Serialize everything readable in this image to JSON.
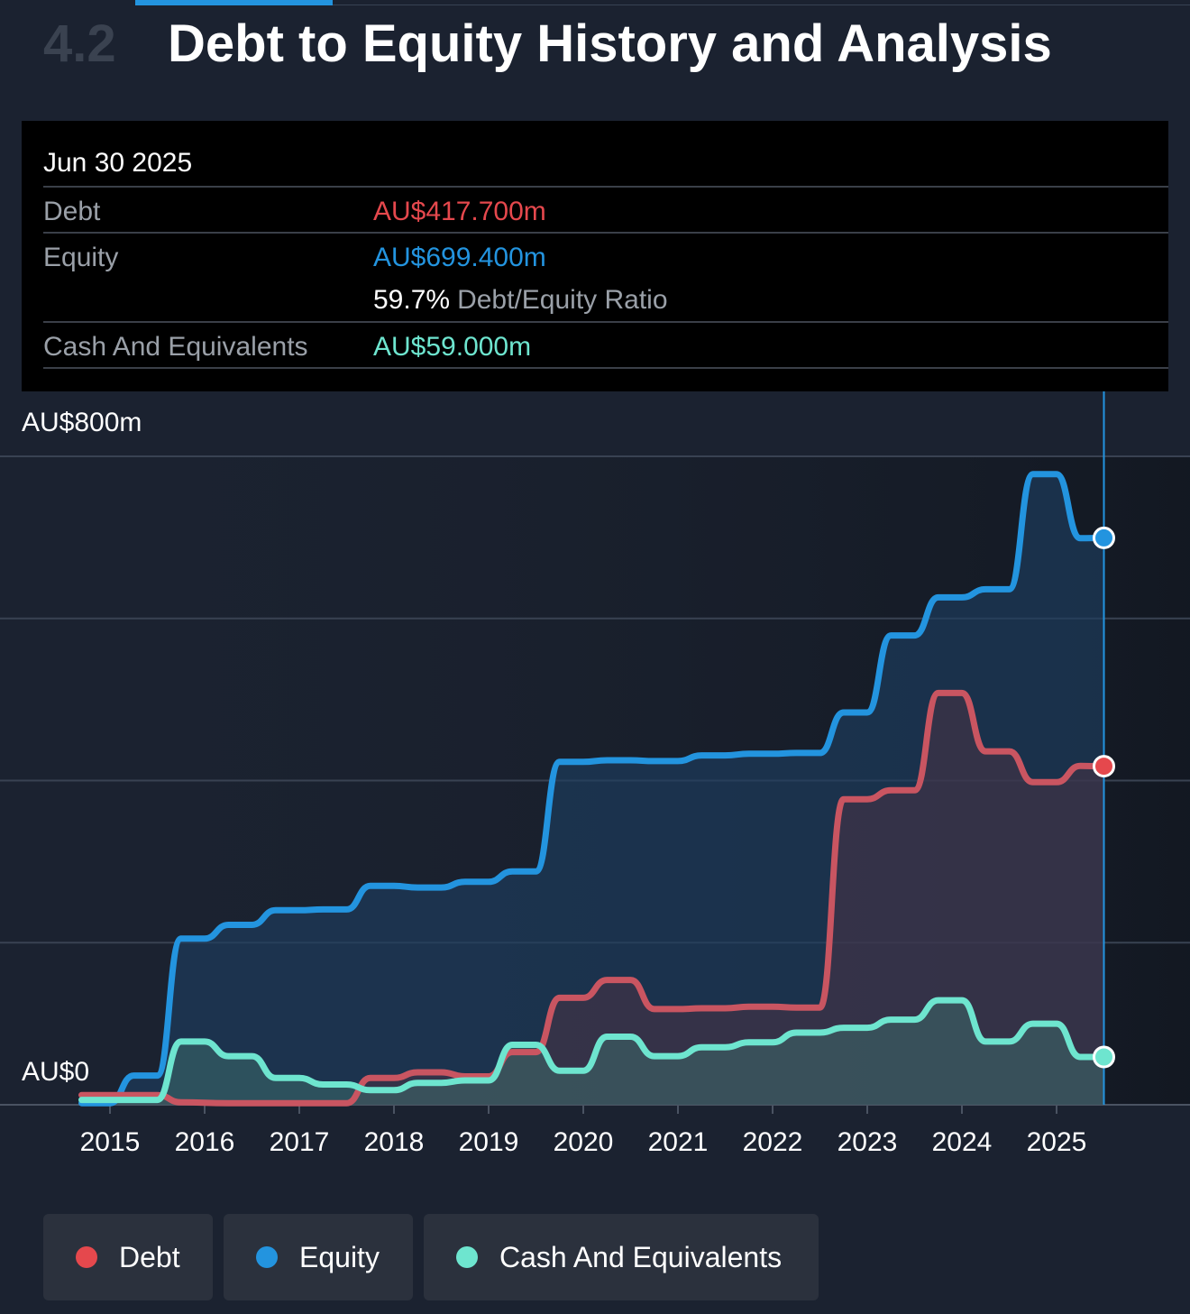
{
  "header": {
    "section_number": "4.2",
    "title": "Debt to Equity History and Analysis"
  },
  "tooltip": {
    "date": "Jun 30 2025",
    "debt_label": "Debt",
    "debt_value": "AU$417.700m",
    "equity_label": "Equity",
    "equity_value": "AU$699.400m",
    "ratio_value": "59.7%",
    "ratio_label": "Debt/Equity Ratio",
    "cash_label": "Cash And Equivalents",
    "cash_value": "AU$59.000m"
  },
  "colors": {
    "debt": "#e5484d",
    "equity": "#2394df",
    "cash": "#6ee5cf",
    "debt_line": "#c95561",
    "background": "#1b2230"
  },
  "legend": [
    {
      "key": "debt",
      "label": "Debt"
    },
    {
      "key": "equity",
      "label": "Equity"
    },
    {
      "key": "cash",
      "label": "Cash And Equivalents"
    }
  ],
  "chart_data": {
    "type": "area",
    "title": "",
    "xlabel": "",
    "ylabel": "",
    "y_axis_labels": [
      "AU$800m",
      "AU$0"
    ],
    "ylim": [
      0,
      800
    ],
    "xlim": [
      2014.7,
      2025.5
    ],
    "x_ticks": [
      "2015",
      "2016",
      "2017",
      "2018",
      "2019",
      "2020",
      "2021",
      "2022",
      "2023",
      "2024",
      "2025"
    ],
    "grid": true,
    "legend_position": "bottom",
    "series": [
      {
        "name": "Debt",
        "key": "debt",
        "points": [
          [
            2014.7,
            12
          ],
          [
            2015.25,
            12
          ],
          [
            2015.5,
            12
          ],
          [
            2015.75,
            3
          ],
          [
            2016.25,
            2
          ],
          [
            2017.0,
            2
          ],
          [
            2017.5,
            2
          ],
          [
            2017.75,
            33
          ],
          [
            2018.0,
            33
          ],
          [
            2018.25,
            40
          ],
          [
            2018.5,
            40
          ],
          [
            2018.75,
            35
          ],
          [
            2019.0,
            35
          ],
          [
            2019.25,
            65
          ],
          [
            2019.5,
            65
          ],
          [
            2019.75,
            132
          ],
          [
            2020.0,
            132
          ],
          [
            2020.25,
            154
          ],
          [
            2020.5,
            154
          ],
          [
            2020.75,
            118
          ],
          [
            2021.0,
            118
          ],
          [
            2021.25,
            119
          ],
          [
            2021.5,
            119
          ],
          [
            2021.75,
            121
          ],
          [
            2022.0,
            121
          ],
          [
            2022.25,
            120
          ],
          [
            2022.5,
            120
          ],
          [
            2022.75,
            377
          ],
          [
            2023.0,
            377
          ],
          [
            2023.25,
            388
          ],
          [
            2023.5,
            388
          ],
          [
            2023.75,
            508
          ],
          [
            2024.0,
            508
          ],
          [
            2024.25,
            436
          ],
          [
            2024.5,
            436
          ],
          [
            2024.75,
            398
          ],
          [
            2025.0,
            398
          ],
          [
            2025.25,
            418
          ],
          [
            2025.5,
            417.7
          ]
        ]
      },
      {
        "name": "Equity",
        "key": "equity",
        "points": [
          [
            2014.7,
            2
          ],
          [
            2015.0,
            2
          ],
          [
            2015.25,
            36
          ],
          [
            2015.5,
            36
          ],
          [
            2015.75,
            205
          ],
          [
            2016.0,
            205
          ],
          [
            2016.25,
            222
          ],
          [
            2016.5,
            222
          ],
          [
            2016.75,
            240
          ],
          [
            2017.0,
            240
          ],
          [
            2017.25,
            241
          ],
          [
            2017.5,
            241
          ],
          [
            2017.75,
            270
          ],
          [
            2018.0,
            270
          ],
          [
            2018.25,
            268
          ],
          [
            2018.5,
            268
          ],
          [
            2018.75,
            275
          ],
          [
            2019.0,
            275
          ],
          [
            2019.25,
            288
          ],
          [
            2019.5,
            288
          ],
          [
            2019.75,
            423
          ],
          [
            2020.0,
            423
          ],
          [
            2020.25,
            425
          ],
          [
            2020.5,
            425
          ],
          [
            2020.75,
            424
          ],
          [
            2021.0,
            424
          ],
          [
            2021.25,
            431
          ],
          [
            2021.5,
            431
          ],
          [
            2021.75,
            433
          ],
          [
            2022.0,
            433
          ],
          [
            2022.25,
            434
          ],
          [
            2022.5,
            434
          ],
          [
            2022.75,
            484
          ],
          [
            2023.0,
            484
          ],
          [
            2023.25,
            579
          ],
          [
            2023.5,
            579
          ],
          [
            2023.75,
            626
          ],
          [
            2024.0,
            626
          ],
          [
            2024.25,
            636
          ],
          [
            2024.5,
            636
          ],
          [
            2024.75,
            778
          ],
          [
            2025.0,
            778
          ],
          [
            2025.25,
            699
          ],
          [
            2025.5,
            699.4
          ]
        ]
      },
      {
        "name": "Cash And Equivalents",
        "key": "cash",
        "points": [
          [
            2014.7,
            6
          ],
          [
            2015.0,
            6
          ],
          [
            2015.25,
            6
          ],
          [
            2015.5,
            6
          ],
          [
            2015.75,
            78
          ],
          [
            2016.0,
            78
          ],
          [
            2016.25,
            60
          ],
          [
            2016.5,
            60
          ],
          [
            2016.75,
            33
          ],
          [
            2017.0,
            33
          ],
          [
            2017.25,
            25
          ],
          [
            2017.5,
            25
          ],
          [
            2017.75,
            18
          ],
          [
            2018.0,
            18
          ],
          [
            2018.25,
            27
          ],
          [
            2018.5,
            27
          ],
          [
            2018.75,
            30
          ],
          [
            2019.0,
            30
          ],
          [
            2019.25,
            74
          ],
          [
            2019.5,
            74
          ],
          [
            2019.75,
            42
          ],
          [
            2020.0,
            42
          ],
          [
            2020.25,
            84
          ],
          [
            2020.5,
            84
          ],
          [
            2020.75,
            60
          ],
          [
            2021.0,
            60
          ],
          [
            2021.25,
            71
          ],
          [
            2021.5,
            71
          ],
          [
            2021.75,
            77
          ],
          [
            2022.0,
            77
          ],
          [
            2022.25,
            89
          ],
          [
            2022.5,
            89
          ],
          [
            2022.75,
            95
          ],
          [
            2023.0,
            95
          ],
          [
            2023.25,
            105
          ],
          [
            2023.5,
            105
          ],
          [
            2023.75,
            129
          ],
          [
            2024.0,
            129
          ],
          [
            2024.25,
            78
          ],
          [
            2024.5,
            78
          ],
          [
            2024.75,
            100
          ],
          [
            2025.0,
            100
          ],
          [
            2025.25,
            59
          ],
          [
            2025.5,
            59.0
          ]
        ]
      }
    ]
  }
}
